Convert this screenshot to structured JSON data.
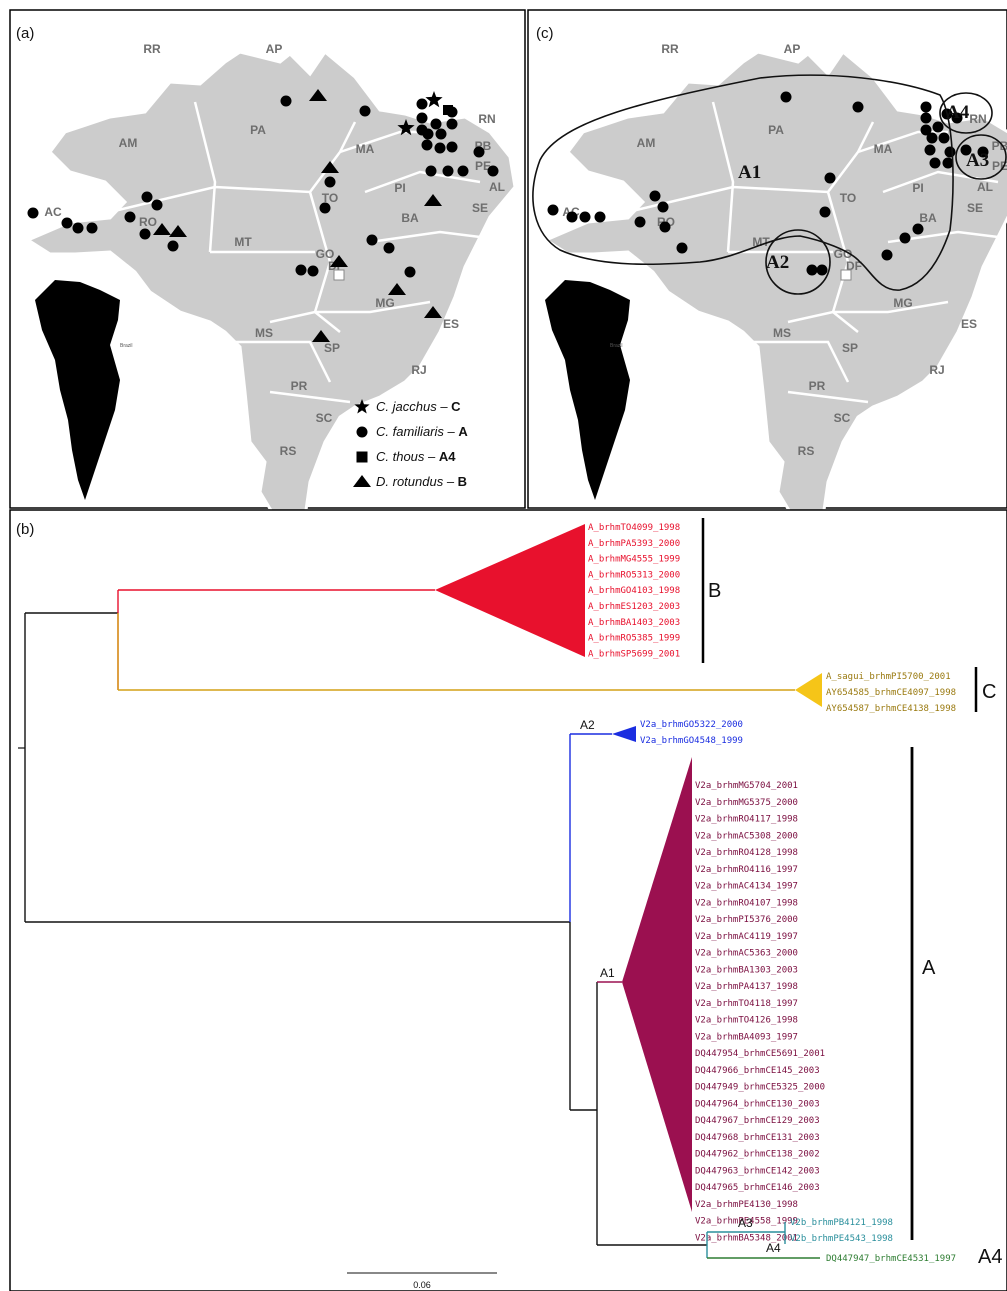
{
  "panels": {
    "a_label": "(a)",
    "b_label": "(b)",
    "c_label": "(c)"
  },
  "map": {
    "states": [
      "RR",
      "AP",
      "AM",
      "PA",
      "MA",
      "PI",
      "RN",
      "PB",
      "PE",
      "AL",
      "SE",
      "AC",
      "RO",
      "TO",
      "BA",
      "MT",
      "GO",
      "DF",
      "MG",
      "ES",
      "MS",
      "SP",
      "RJ",
      "PR",
      "SC",
      "RS"
    ],
    "inset_text": "Brazil"
  },
  "legend": [
    {
      "symbol": "star",
      "species": "C. jacchus",
      "sep": " – ",
      "group": "C"
    },
    {
      "symbol": "circle",
      "species": "C. familiaris",
      "sep": " – ",
      "group": "A"
    },
    {
      "symbol": "square",
      "species": "C. thous",
      "sep": " – ",
      "group": "A4"
    },
    {
      "symbol": "triangle",
      "species": "D. rotundus",
      "sep": " – ",
      "group": "B"
    }
  ],
  "map_c": {
    "clusters": [
      "A1",
      "A2",
      "A3",
      "A4"
    ]
  },
  "tree": {
    "scale_label": "0.06",
    "groups": {
      "B": "B",
      "C": "C",
      "A": "A",
      "A4": "A4"
    },
    "nodes": {
      "A1": "A1",
      "A2": "A2",
      "A3": "A3",
      "A4": "A4"
    },
    "clade_B": {
      "color": "#e8112d",
      "taxa": [
        "A_brhmTO4099_1998",
        "A_brhmPA5393_2000",
        "A_brhmMG4555_1999",
        "A_brhmRO5313_2000",
        "A_brhmGO4103_1998",
        "A_brhmES1203_2003",
        "A_brhmBA1403_2003",
        "A_brhmRO5385_1999",
        "A_brhmSP5699_2001"
      ]
    },
    "clade_C": {
      "color": "#f5c518",
      "taxa": [
        "A_sagui_brhmPI5700_2001",
        "AY654585_brhmCE4097_1998",
        "AY654587_brhmCE4138_1998"
      ]
    },
    "clade_A2": {
      "color": "#1a2de0",
      "taxa": [
        "V2a_brhmGO5322_2000",
        "V2a_brhmGO4548_1999"
      ]
    },
    "clade_A1": {
      "color": "#9b1050",
      "taxa": [
        "V2a_brhmMG5704_2001",
        "V2a_brhmMG5375_2000",
        "V2a_brhmRO4117_1998",
        "V2a_brhmAC5308_2000",
        "V2a_brhmRO4128_1998",
        "V2a_brhmRO4116_1997",
        "V2a_brhmAC4134_1997",
        "V2a_brhmRO4107_1998",
        "V2a_brhmPI5376_2000",
        "V2a_brhmAC4119_1997",
        "V2a_brhmAC5363_2000",
        "V2a_brhmBA1303_2003",
        "V2a_brhmPA4137_1998",
        "V2a_brhmTO4118_1997",
        "V2a_brhmTO4126_1998",
        "V2a_brhmBA4093_1997",
        "DQ447954_brhmCE5691_2001",
        "DQ447966_brhmCE145_2003",
        "DQ447949_brhmCE5325_2000",
        "DQ447964_brhmCE130_2003",
        "DQ447967_brhmCE129_2003",
        "DQ447968_brhmCE131_2003",
        "DQ447962_brhmCE138_2002",
        "DQ447963_brhmCE142_2003",
        "DQ447965_brhmCE146_2003",
        "V2a_brhmPE4130_1998",
        "V2a_brhmPE4558_1999",
        "V2a_brhmBA5348_2001"
      ]
    },
    "clade_A3": {
      "color": "#2a8f9c",
      "taxa": [
        "V2b_brhmPB4121_1998",
        "V2b_brhmPE4543_1998"
      ]
    },
    "clade_A4": {
      "color": "#2e7d32",
      "taxa": [
        "DQ447947_brhmCE4531_1997"
      ]
    },
    "branch_colors": {
      "root": "#111111",
      "B": "#e8112d",
      "C": "#d4a017",
      "A2": "#1a2de0",
      "A1": "#9b1050",
      "A3": "#2a8f9c",
      "A4": "#2e7d32"
    }
  }
}
